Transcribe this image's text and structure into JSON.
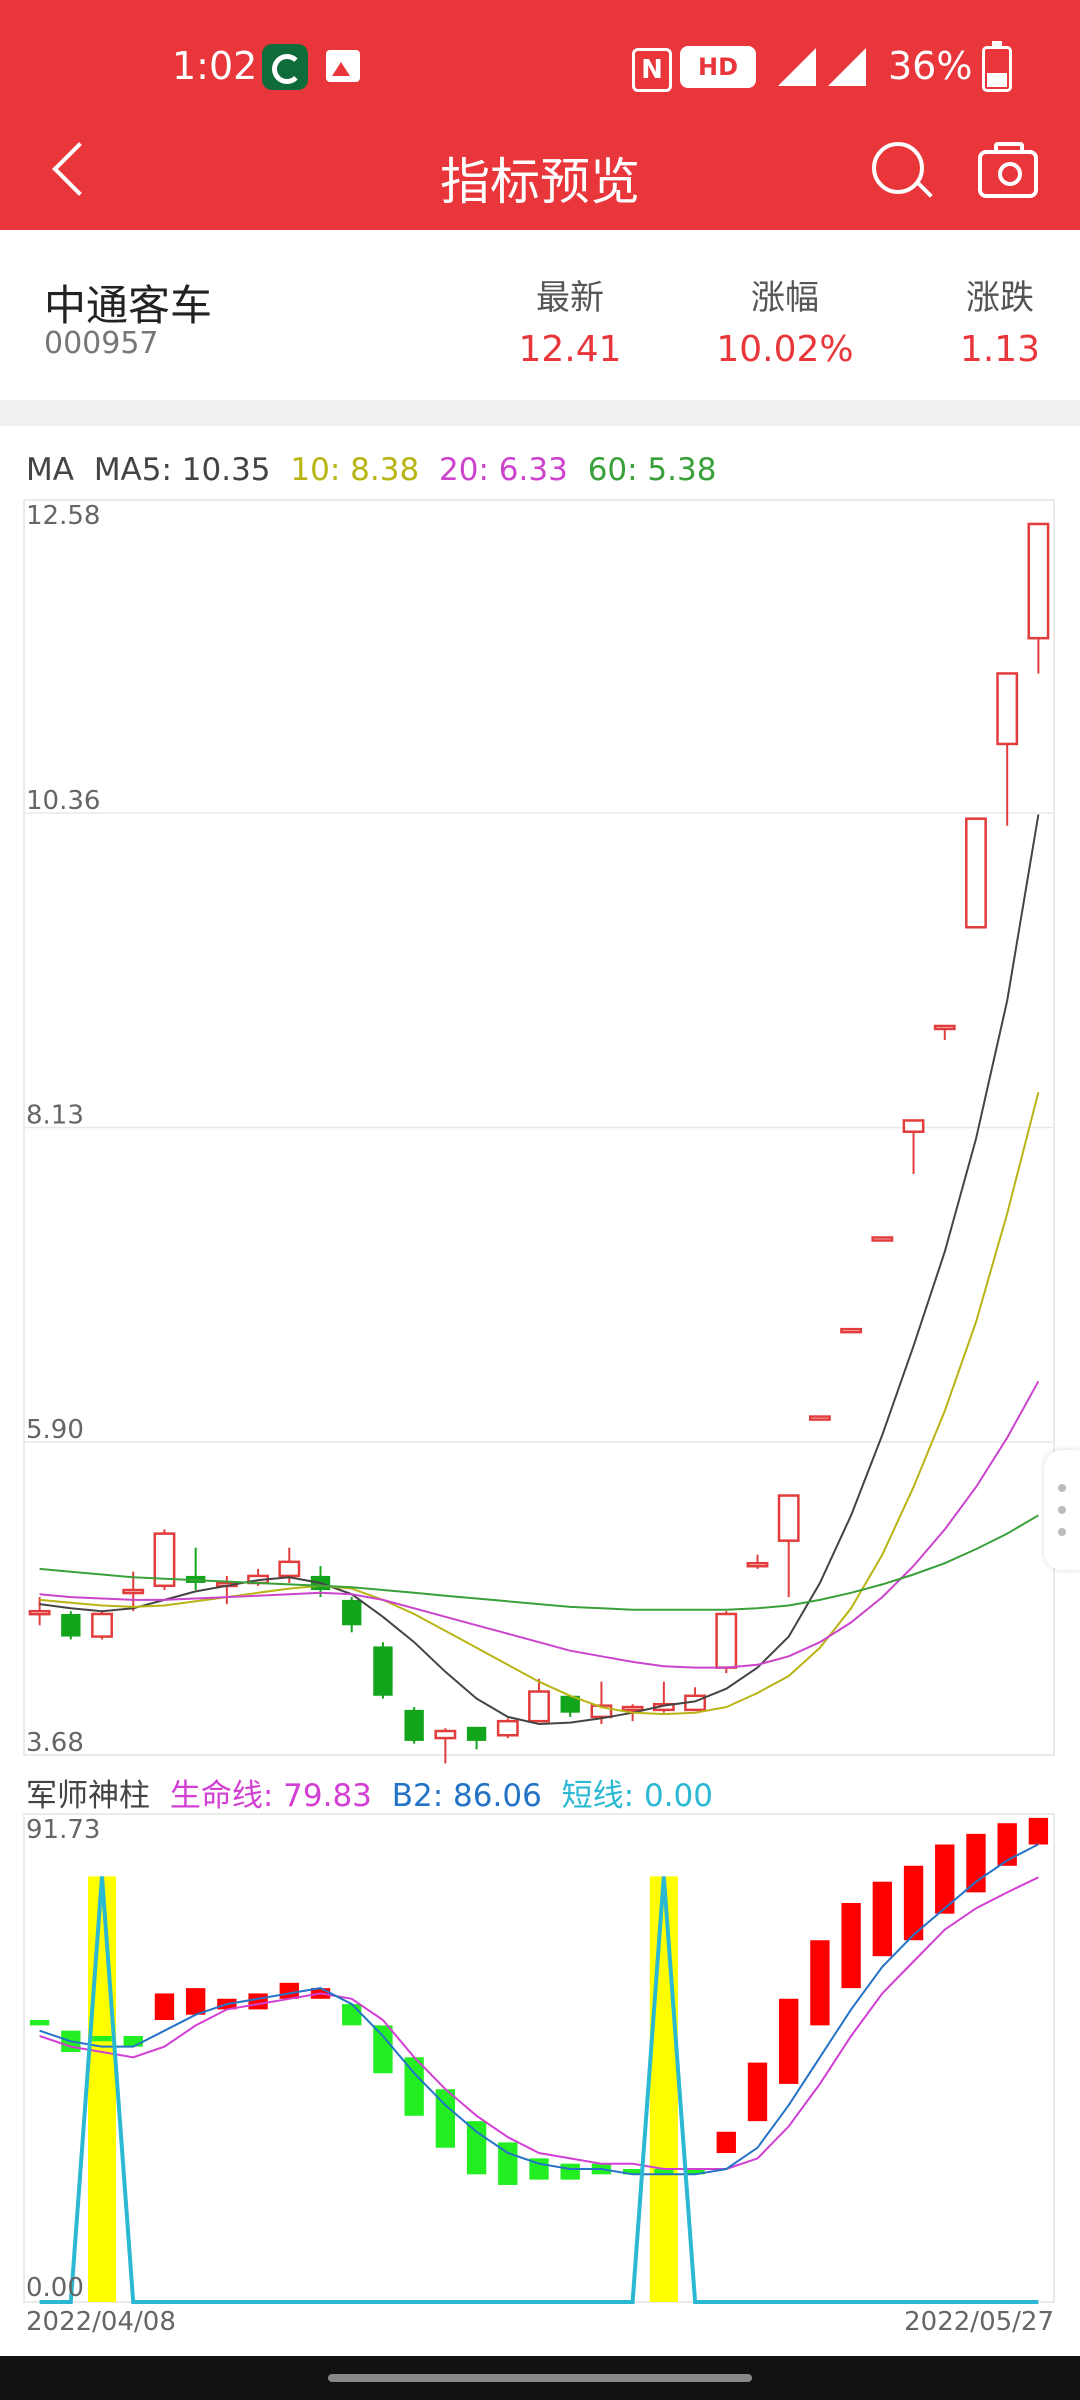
{
  "status_bar": {
    "time": "1:02",
    "hd_label": "HD",
    "network": [
      "4G",
      "4G"
    ],
    "battery": "36%",
    "battery_level": 0.36
  },
  "nav": {
    "title": "指标预览",
    "icons": [
      "back-icon",
      "search-icon",
      "camera-icon"
    ]
  },
  "quote": {
    "name": "中通客车",
    "code": "000957",
    "latest_label": "最新",
    "latest": "12.41",
    "change_pct_label": "涨幅",
    "change_pct": "10.02%",
    "change_label": "涨跌",
    "change": "1.13"
  },
  "colors": {
    "brand": "#e8363b",
    "up": "#e23c3c",
    "down": "#12a51b",
    "ma5": "#444444",
    "ma10": "#b8b414",
    "ma20": "#cc44cc",
    "ma60": "#3aa03a",
    "life": "#d23fd3",
    "b2": "#2573c6",
    "short": "#2bb8d3",
    "pillar_up": "#ff0000",
    "pillar_down": "#22ee22",
    "highlight": "#ffff00"
  },
  "ma_legend": {
    "title": "MA",
    "ma5": "MA5: 10.35",
    "ma10": "10: 8.38",
    "ma20": "20: 6.33",
    "ma60": "60: 5.38"
  },
  "indicator_legend": {
    "title": "军师神柱",
    "life": "生命线: 79.83",
    "b2": "B2: 86.06",
    "short": "短线: 0.00"
  },
  "dates": {
    "start": "2022/04/08",
    "end": "2022/05/27"
  },
  "chart_data": [
    {
      "type": "candlestick",
      "title": "MA",
      "y_ticks": [
        "12.58",
        "10.36",
        "8.13",
        "5.90",
        "3.68"
      ],
      "ylim": [
        3.68,
        12.58
      ],
      "grid": true,
      "candles": [
        {
          "o": 4.7,
          "c": 4.7,
          "h": 4.8,
          "l": 4.6
        },
        {
          "o": 4.68,
          "c": 4.52,
          "h": 4.7,
          "l": 4.5
        },
        {
          "o": 4.52,
          "c": 4.68,
          "h": 4.7,
          "l": 4.5
        },
        {
          "o": 4.85,
          "c": 4.85,
          "h": 4.98,
          "l": 4.7
        },
        {
          "o": 4.88,
          "c": 5.25,
          "h": 5.28,
          "l": 4.85
        },
        {
          "o": 4.95,
          "c": 4.9,
          "h": 5.15,
          "l": 4.85
        },
        {
          "o": 4.9,
          "c": 4.9,
          "h": 4.95,
          "l": 4.75
        },
        {
          "o": 4.9,
          "c": 4.95,
          "h": 5.0,
          "l": 4.88
        },
        {
          "o": 4.95,
          "c": 5.05,
          "h": 5.15,
          "l": 4.9
        },
        {
          "o": 4.95,
          "c": 4.85,
          "h": 5.02,
          "l": 4.8
        },
        {
          "o": 4.78,
          "c": 4.6,
          "h": 4.8,
          "l": 4.55
        },
        {
          "o": 4.45,
          "c": 4.1,
          "h": 4.48,
          "l": 4.08
        },
        {
          "o": 4.0,
          "c": 3.78,
          "h": 4.02,
          "l": 3.76
        },
        {
          "o": 3.8,
          "c": 3.85,
          "h": 3.87,
          "l": 3.62
        },
        {
          "o": 3.88,
          "c": 3.78,
          "h": 3.88,
          "l": 3.72
        },
        {
          "o": 3.82,
          "c": 3.92,
          "h": 3.94,
          "l": 3.8
        },
        {
          "o": 3.92,
          "c": 4.13,
          "h": 4.22,
          "l": 3.92
        },
        {
          "o": 4.1,
          "c": 3.98,
          "h": 4.1,
          "l": 3.95
        },
        {
          "o": 3.95,
          "c": 4.03,
          "h": 4.2,
          "l": 3.9
        },
        {
          "o": 4.0,
          "c": 4.02,
          "h": 4.04,
          "l": 3.92
        },
        {
          "o": 4.0,
          "c": 4.04,
          "h": 4.2,
          "l": 3.98
        },
        {
          "o": 4.0,
          "c": 4.1,
          "h": 4.16,
          "l": 4.0
        },
        {
          "o": 4.3,
          "c": 4.68,
          "h": 4.7,
          "l": 4.26
        },
        {
          "o": 5.04,
          "c": 5.04,
          "h": 5.1,
          "l": 5.0
        },
        {
          "o": 5.2,
          "c": 5.52,
          "h": 5.52,
          "l": 4.8
        },
        {
          "o": 6.08,
          "c": 6.08,
          "h": 6.08,
          "l": 6.08
        },
        {
          "o": 6.7,
          "c": 6.7,
          "h": 6.7,
          "l": 6.7
        },
        {
          "o": 7.35,
          "c": 7.35,
          "h": 7.35,
          "l": 7.35
        },
        {
          "o": 8.1,
          "c": 8.18,
          "h": 8.18,
          "l": 7.8
        },
        {
          "o": 8.85,
          "c": 8.85,
          "h": 8.85,
          "l": 8.75
        },
        {
          "o": 9.55,
          "c": 10.32,
          "h": 10.32,
          "l": 9.55
        },
        {
          "o": 10.85,
          "c": 11.35,
          "h": 11.35,
          "l": 10.27
        },
        {
          "o": 11.6,
          "c": 12.41,
          "h": 12.41,
          "l": 11.35
        }
      ],
      "series": [
        {
          "name": "MA5",
          "values": [
            4.75,
            4.72,
            4.7,
            4.72,
            4.78,
            4.84,
            4.88,
            4.92,
            4.94,
            4.9,
            4.82,
            4.66,
            4.48,
            4.27,
            4.08,
            3.95,
            3.9,
            3.91,
            3.94,
            3.98,
            4.03,
            4.06,
            4.15,
            4.3,
            4.52,
            4.9,
            5.38,
            5.95,
            6.58,
            7.25,
            8.05,
            9.03,
            10.35
          ]
        },
        {
          "name": "10",
          "values": [
            4.78,
            4.76,
            4.74,
            4.73,
            4.74,
            4.77,
            4.8,
            4.83,
            4.86,
            4.88,
            4.86,
            4.78,
            4.68,
            4.56,
            4.44,
            4.32,
            4.2,
            4.1,
            4.02,
            3.98,
            3.97,
            3.98,
            4.02,
            4.12,
            4.24,
            4.44,
            4.72,
            5.1,
            5.58,
            6.12,
            6.75,
            7.52,
            8.38
          ]
        },
        {
          "name": "20",
          "values": [
            4.82,
            4.8,
            4.79,
            4.78,
            4.78,
            4.79,
            4.8,
            4.81,
            4.82,
            4.83,
            4.82,
            4.78,
            4.72,
            4.66,
            4.6,
            4.54,
            4.48,
            4.42,
            4.38,
            4.34,
            4.31,
            4.3,
            4.3,
            4.32,
            4.38,
            4.48,
            4.62,
            4.8,
            5.02,
            5.28,
            5.58,
            5.93,
            6.33
          ]
        },
        {
          "name": "60",
          "values": [
            5.0,
            4.98,
            4.96,
            4.94,
            4.93,
            4.92,
            4.91,
            4.9,
            4.89,
            4.88,
            4.87,
            4.85,
            4.83,
            4.81,
            4.79,
            4.77,
            4.75,
            4.73,
            4.72,
            4.71,
            4.71,
            4.71,
            4.71,
            4.72,
            4.74,
            4.78,
            4.83,
            4.89,
            4.96,
            5.04,
            5.14,
            5.25,
            5.38
          ]
        }
      ]
    },
    {
      "type": "bar",
      "title": "军师神柱",
      "y_ticks": [
        "91.73",
        "0.00"
      ],
      "ylim": [
        0,
        91.73
      ],
      "x_labels": [
        "2022/04/08",
        "2022/05/27"
      ],
      "pillars": [
        {
          "o": 53,
          "c": 52
        },
        {
          "o": 51,
          "c": 47
        },
        {
          "o": 50,
          "c": 49
        },
        {
          "o": 50,
          "c": 48
        },
        {
          "o": 53,
          "c": 58
        },
        {
          "o": 54,
          "c": 59
        },
        {
          "o": 55,
          "c": 57
        },
        {
          "o": 55,
          "c": 58
        },
        {
          "o": 57,
          "c": 60
        },
        {
          "o": 57,
          "c": 59
        },
        {
          "o": 56,
          "c": 52
        },
        {
          "o": 52,
          "c": 43
        },
        {
          "o": 46,
          "c": 35
        },
        {
          "o": 40,
          "c": 29
        },
        {
          "o": 34,
          "c": 24
        },
        {
          "o": 30,
          "c": 22
        },
        {
          "o": 27,
          "c": 23
        },
        {
          "o": 26,
          "c": 23
        },
        {
          "o": 26,
          "c": 24
        },
        {
          "o": 25,
          "c": 24
        },
        {
          "o": 25,
          "c": 24
        },
        {
          "o": 25,
          "c": 24
        },
        {
          "o": 28,
          "c": 32
        },
        {
          "o": 34,
          "c": 45
        },
        {
          "o": 41,
          "c": 57
        },
        {
          "o": 52,
          "c": 68
        },
        {
          "o": 59,
          "c": 75
        },
        {
          "o": 65,
          "c": 79
        },
        {
          "o": 68,
          "c": 82
        },
        {
          "o": 73,
          "c": 86
        },
        {
          "o": 77,
          "c": 88
        },
        {
          "o": 82,
          "c": 90
        },
        {
          "o": 86,
          "c": 91
        }
      ],
      "series": [
        {
          "name": "生命线",
          "values": [
            50,
            48,
            47,
            46,
            48,
            52,
            55,
            56,
            57,
            58,
            57,
            53,
            46,
            40,
            35,
            31,
            28,
            27,
            26,
            26,
            25,
            25,
            25,
            27,
            33,
            41,
            50,
            58,
            64,
            70,
            74,
            77,
            79.83
          ]
        },
        {
          "name": "B2",
          "values": [
            51,
            49,
            48,
            48,
            51,
            54,
            56,
            57,
            58,
            59,
            56,
            50,
            43,
            37,
            32,
            28,
            26,
            25,
            25,
            24,
            24,
            24,
            25,
            29,
            37,
            46,
            55,
            63,
            69,
            74,
            79,
            83,
            86.06
          ]
        },
        {
          "name": "短线",
          "values": [
            0,
            0,
            80,
            0,
            0,
            0,
            0,
            0,
            0,
            0,
            0,
            0,
            0,
            0,
            0,
            0,
            0,
            0,
            0,
            0,
            80,
            0,
            0,
            0,
            0,
            0,
            0,
            0,
            0,
            0,
            0,
            0,
            0
          ]
        }
      ],
      "highlights": [
        2,
        20
      ]
    }
  ]
}
